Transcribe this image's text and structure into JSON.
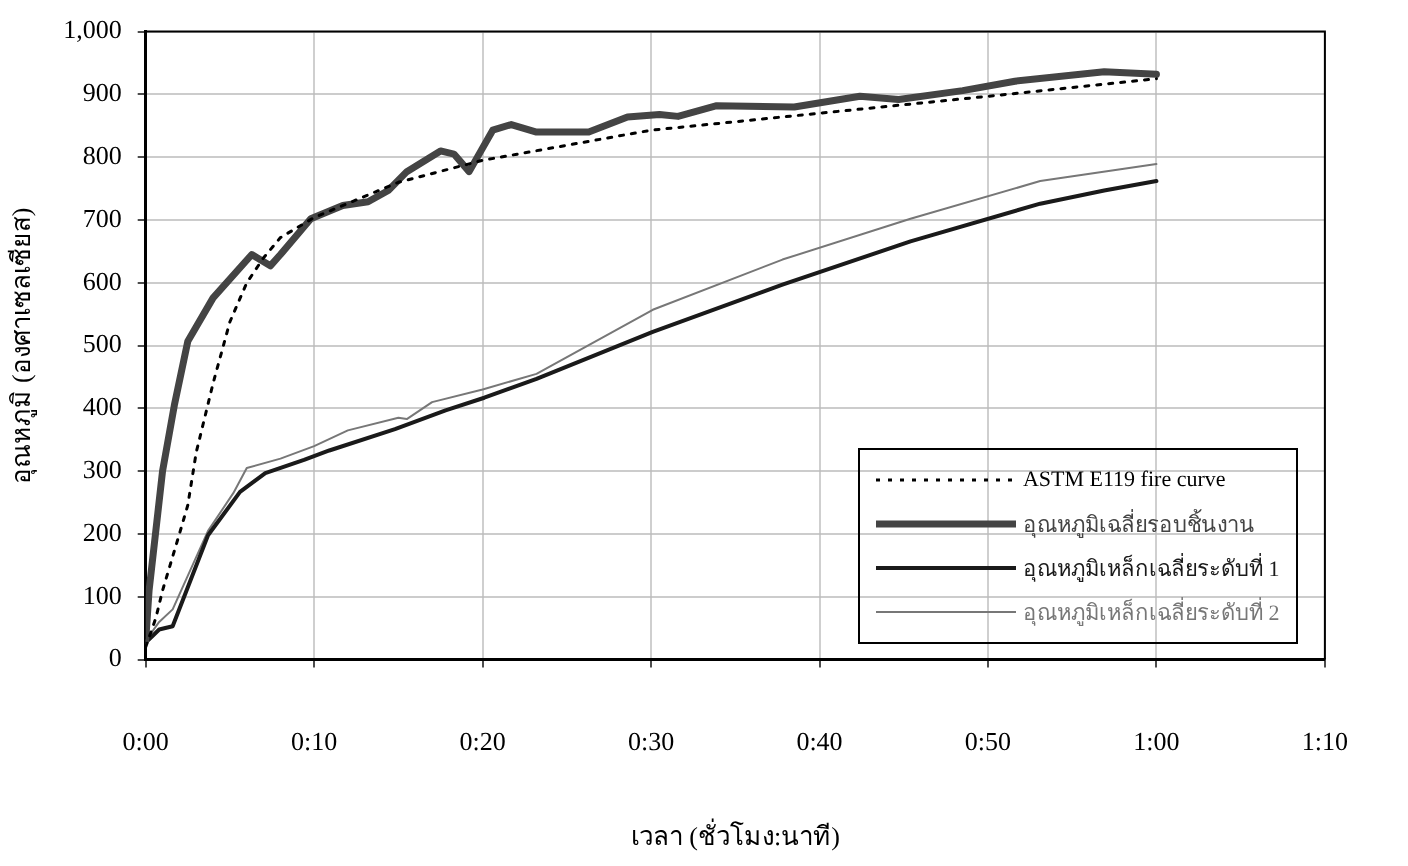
{
  "chart_data": {
    "type": "line",
    "xlabel": "เวลา (ชั่วโมง:นาที)",
    "ylabel": "อุณหภูมิ (องศาเซลเซียส)",
    "xlim": [
      0,
      70
    ],
    "xticks": [
      {
        "value": 0,
        "label": "0:00"
      },
      {
        "value": 10,
        "label": "0:10"
      },
      {
        "value": 20,
        "label": "0:20"
      },
      {
        "value": 30,
        "label": "0:30"
      },
      {
        "value": 40,
        "label": "0:40"
      },
      {
        "value": 50,
        "label": "0:50"
      },
      {
        "value": 60,
        "label": "1:00"
      },
      {
        "value": 70,
        "label": "1:10"
      }
    ],
    "ylim": [
      0,
      1000
    ],
    "yticks": [
      0,
      100,
      200,
      300,
      400,
      500,
      600,
      700,
      800,
      900,
      {
        "value": 1000,
        "label": "1,000"
      }
    ],
    "grid": true,
    "legend": "bottom right",
    "marker": "none",
    "series": [
      {
        "name": "ASTM E119 fire curve",
        "color": "#000000",
        "line_style": "dotted",
        "x": [
          0,
          0.6,
          1,
          2,
          2.5,
          3,
          4,
          5,
          6,
          7,
          8,
          10,
          15,
          20,
          30,
          40,
          50,
          60
        ],
        "values": [
          20,
          66,
          110,
          200,
          246,
          330,
          440,
          538,
          600,
          640,
          672,
          704,
          760,
          795,
          843,
          870,
          897,
          925
        ]
      },
      {
        "name": "อุณหภูมิเฉลี่ยรอบชิ้นงาน",
        "color": "#444444",
        "line_style": "solid",
        "x": [
          0,
          0.2,
          1,
          1.7,
          2.5,
          4,
          6.3,
          7.4,
          8,
          9.8,
          11.7,
          13.2,
          14.4,
          15.5,
          17.5,
          18.3,
          19.2,
          20.6,
          21.7,
          23.2,
          26.3,
          28.6,
          30.5,
          31.6,
          33.9,
          38.5,
          42.4,
          44.7,
          48.5,
          51.6,
          56.9,
          60
        ],
        "values": [
          30,
          110,
          300,
          405,
          507,
          576,
          645,
          627,
          645,
          702,
          723,
          729,
          747,
          777,
          810,
          805,
          777,
          843,
          852,
          840,
          840,
          864,
          868,
          865,
          882,
          880,
          897,
          892,
          906,
          921,
          936,
          932
        ]
      },
      {
        "name": "อุณหภูมิเหล็กเฉลี่ยระดับที่ 1",
        "color": "#1a1a1a",
        "line_style": "solid",
        "x": [
          0,
          0.8,
          1.6,
          3.7,
          5.6,
          7.1,
          9.4,
          10.9,
          14.8,
          17.8,
          20.1,
          23.2,
          30.1,
          37.8,
          45.4,
          53.1,
          56.9,
          60
        ],
        "values": [
          27,
          48,
          53,
          198,
          267,
          297,
          318,
          333,
          367,
          397,
          417,
          447,
          522,
          597,
          666,
          726,
          747,
          762
        ]
      },
      {
        "name": "อุณหภูมิเหล็กเฉลี่ยระดับที่ 2",
        "color": "#777777",
        "line_style": "solid",
        "x": [
          0,
          0.8,
          1.6,
          3.7,
          5.2,
          6,
          8,
          10,
          12,
          15,
          15.5,
          17,
          20,
          23.2,
          30.1,
          37.8,
          45.4,
          53.1,
          60
        ],
        "values": [
          30,
          60,
          80,
          205,
          265,
          305,
          320,
          340,
          365,
          385,
          383,
          410,
          430,
          455,
          557,
          637,
          702,
          762,
          789
        ]
      }
    ]
  }
}
